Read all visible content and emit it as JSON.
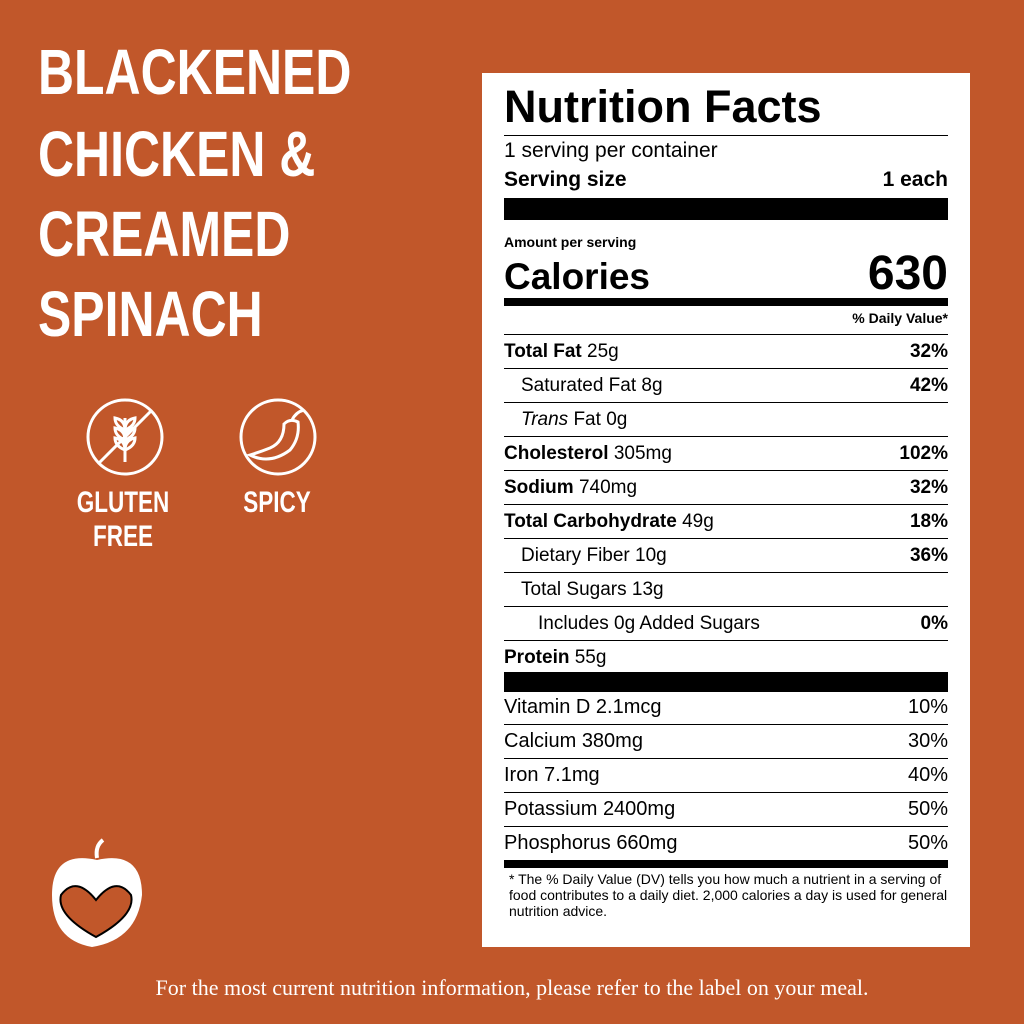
{
  "product": {
    "title_lines": [
      "BLACKENED",
      "CHICKEN &",
      "CREAMED",
      "SPINACH"
    ],
    "badges": [
      "GLUTEN FREE",
      "SPICY"
    ]
  },
  "label": {
    "title": "Nutrition Facts",
    "servings": "1 serving per container",
    "serving_size_label": "Serving size",
    "serving_size": "1 each",
    "amount_per_serving": "Amount per serving",
    "calories_label": "Calories",
    "calories": "630",
    "dv_header": "% Daily Value*",
    "total_fat": {
      "name": "Total Fat",
      "amount": "25g",
      "dv": "32%"
    },
    "saturated_fat": {
      "name": "Saturated Fat",
      "amount": "8g",
      "dv": "42%"
    },
    "trans_fat": {
      "name_italic": "Trans",
      "name": "Fat",
      "amount": "0g"
    },
    "cholesterol": {
      "name": "Cholesterol",
      "amount": "305mg",
      "dv": "102%"
    },
    "sodium": {
      "name": "Sodium",
      "amount": "740mg",
      "dv": "32%"
    },
    "total_carbohydrate": {
      "name": "Total Carbohydrate",
      "amount": "49g",
      "dv": "18%"
    },
    "dietary_fiber": {
      "name": "Dietary Fiber",
      "amount": "10g",
      "dv": "36%"
    },
    "total_sugars": {
      "name": "Total Sugars",
      "amount": "13g"
    },
    "added_sugars": {
      "name": "Includes 0g Added Sugars",
      "dv": "0%"
    },
    "protein": {
      "name": "Protein",
      "amount": "55g"
    },
    "vitamins": [
      {
        "name": "Vitamin D",
        "amount": "2.1mcg",
        "dv": "10%"
      },
      {
        "name": "Calcium",
        "amount": "380mg",
        "dv": "30%"
      },
      {
        "name": "Iron",
        "amount": "7.1mg",
        "dv": "40%"
      },
      {
        "name": "Potassium",
        "amount": "2400mg",
        "dv": "50%"
      },
      {
        "name": "Phosphorus",
        "amount": "660mg",
        "dv": "50%"
      }
    ],
    "footnote": "* The % Daily Value (DV) tells you how much a nutrient in a serving of food contributes to a daily diet. 2,000 calories a day is used for general nutrition advice."
  },
  "footer": "For the most current nutrition information, please refer to the label on your meal."
}
